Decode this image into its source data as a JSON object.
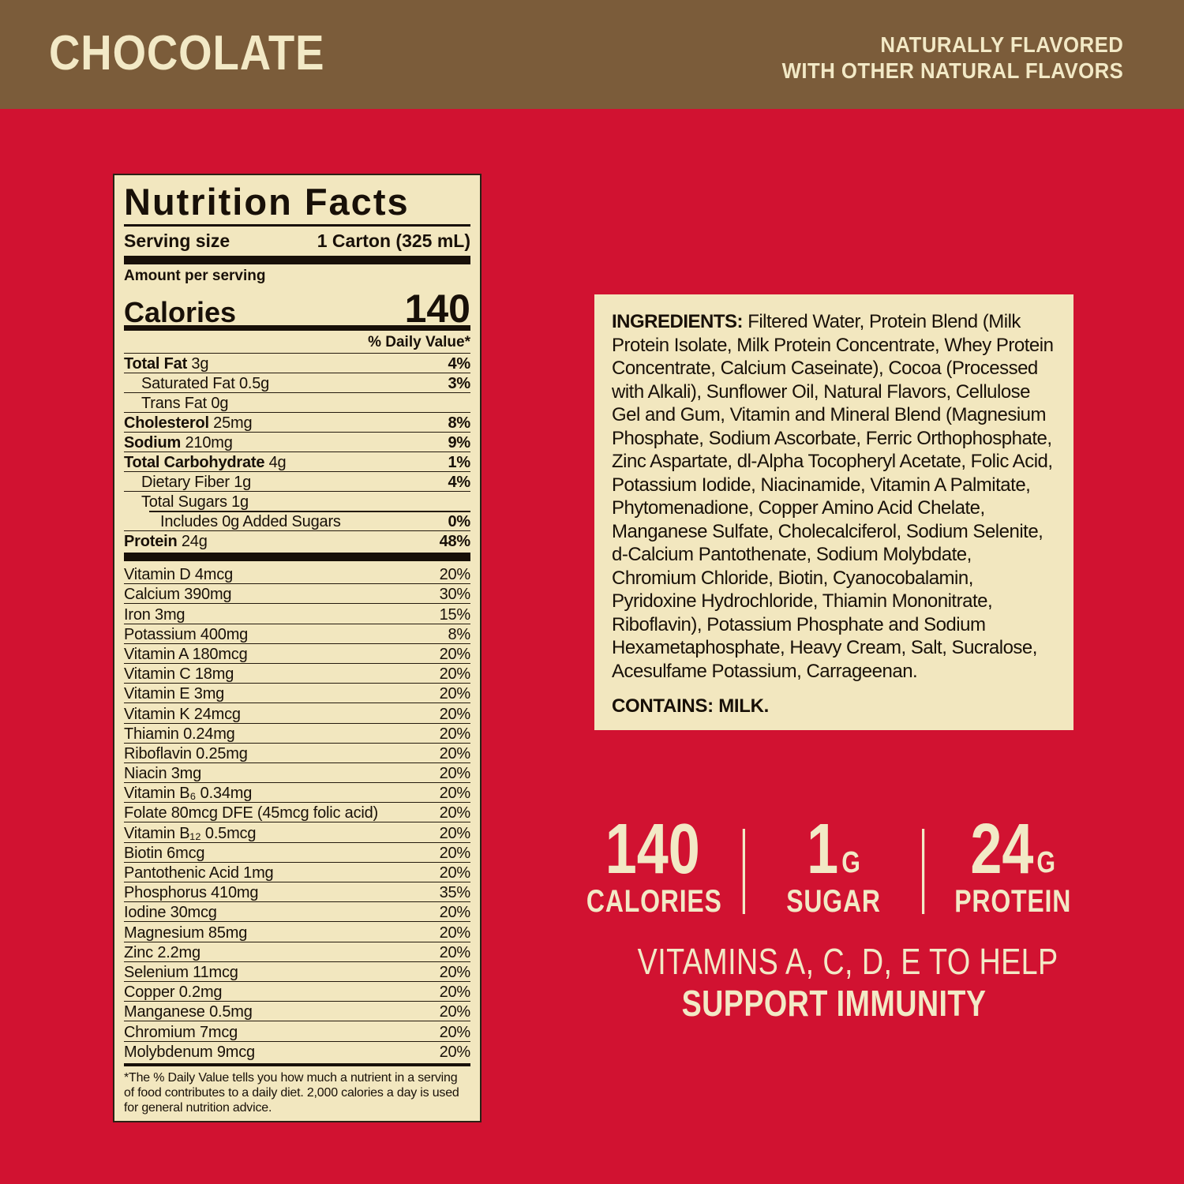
{
  "banner": {
    "flavor": "CHOCOLATE",
    "tagline_line1": "NATURALLY FLAVORED",
    "tagline_line2": "WITH OTHER NATURAL FLAVORS"
  },
  "nutrition_facts": {
    "title": "Nutrition Facts",
    "serving_size_label": "Serving size",
    "serving_size_value": "1 Carton (325 mL)",
    "amount_per_serving": "Amount per serving",
    "calories_label": "Calories",
    "calories_value": "140",
    "daily_value_header": "% Daily Value*",
    "main_rows": [
      {
        "bold": "Total Fat",
        "rest": "3g",
        "dv": "4%",
        "indent": 0
      },
      {
        "bold": "",
        "rest": "Saturated Fat 0.5g",
        "dv": "3%",
        "indent": 1
      },
      {
        "bold": "",
        "rest": "Trans Fat 0g",
        "dv": "",
        "indent": 1
      },
      {
        "bold": "Cholesterol",
        "rest": "25mg",
        "dv": "8%",
        "indent": 0
      },
      {
        "bold": "Sodium",
        "rest": "210mg",
        "dv": "9%",
        "indent": 0
      },
      {
        "bold": "Total Carbohydrate",
        "rest": "4g",
        "dv": "1%",
        "indent": 0
      },
      {
        "bold": "",
        "rest": "Dietary Fiber 1g",
        "dv": "4%",
        "indent": 1
      },
      {
        "bold": "",
        "rest": "Total Sugars 1g",
        "dv": "",
        "indent": 1
      },
      {
        "bold": "",
        "rest": "Includes 0g Added Sugars",
        "dv": "0%",
        "indent": 2,
        "sep_indent": true
      },
      {
        "bold": "Protein",
        "rest": "24g",
        "dv": "48%",
        "indent": 0
      }
    ],
    "micro_rows": [
      {
        "name": "Vitamin D 4mcg",
        "dv": "20%"
      },
      {
        "name": "Calcium 390mg",
        "dv": "30%"
      },
      {
        "name": "Iron 3mg",
        "dv": "15%"
      },
      {
        "name": "Potassium 400mg",
        "dv": "8%"
      },
      {
        "name": "Vitamin A 180mcg",
        "dv": "20%"
      },
      {
        "name": "Vitamin C 18mg",
        "dv": "20%"
      },
      {
        "name": "Vitamin E 3mg",
        "dv": "20%"
      },
      {
        "name": "Vitamin K 24mcg",
        "dv": "20%"
      },
      {
        "name": "Thiamin 0.24mg",
        "dv": "20%"
      },
      {
        "name": "Riboflavin 0.25mg",
        "dv": "20%"
      },
      {
        "name": "Niacin 3mg",
        "dv": "20%"
      },
      {
        "name": "Vitamin B₆ 0.34mg",
        "dv": "20%"
      },
      {
        "name": "Folate 80mcg DFE (45mcg folic acid)",
        "dv": "20%"
      },
      {
        "name": "Vitamin B₁₂ 0.5mcg",
        "dv": "20%"
      },
      {
        "name": "Biotin 6mcg",
        "dv": "20%"
      },
      {
        "name": "Pantothenic Acid 1mg",
        "dv": "20%"
      },
      {
        "name": "Phosphorus 410mg",
        "dv": "35%"
      },
      {
        "name": "Iodine 30mcg",
        "dv": "20%"
      },
      {
        "name": "Magnesium 85mg",
        "dv": "20%"
      },
      {
        "name": "Zinc 2.2mg",
        "dv": "20%"
      },
      {
        "name": "Selenium 11mcg",
        "dv": "20%"
      },
      {
        "name": "Copper 0.2mg",
        "dv": "20%"
      },
      {
        "name": "Manganese 0.5mg",
        "dv": "20%"
      },
      {
        "name": "Chromium 7mcg",
        "dv": "20%"
      },
      {
        "name": "Molybdenum 9mcg",
        "dv": "20%"
      }
    ],
    "footnote": "*The % Daily Value tells you how much a nutrient in a serving of food contributes to a daily diet. 2,000 calories a day is used for general nutrition advice."
  },
  "ingredients": {
    "label": "INGREDIENTS:",
    "text": "Filtered Water, Protein Blend (Milk Protein Isolate, Milk Protein Concentrate, Whey Protein Concentrate, Calcium Caseinate), Cocoa (Processed with Alkali), Sunflower Oil, Natural Flavors, Cellulose Gel and Gum, Vitamin and Mineral Blend (Magnesium Phosphate, Sodium Ascorbate, Ferric Orthophosphate, Zinc Aspartate, dl-Alpha Tocopheryl Acetate, Folic Acid, Potassium Iodide, Niacinamide, Vitamin A Palmitate, Phytomenadione, Copper Amino Acid Chelate, Manganese Sulfate, Cholecalciferol, Sodium Selenite, d-Calcium Pantothenate, Sodium Molybdate, Chromium Chloride, Biotin, Cyanocobalamin, Pyridoxine Hydrochloride, Thiamin Mononitrate, Riboflavin), Potassium Phosphate and Sodium Hexametaphosphate, Heavy Cream, Salt, Sucralose, Acesulfame Potassium, Carrageenan.",
    "contains": "CONTAINS: MILK."
  },
  "stats": [
    {
      "value": "140",
      "unit": "",
      "label": "CALORIES"
    },
    {
      "value": "1",
      "unit": "G",
      "label": "SUGAR"
    },
    {
      "value": "24",
      "unit": "G",
      "label": "PROTEIN"
    }
  ],
  "claim": {
    "line1": "VITAMINS A, C, D, E TO HELP",
    "line2": "SUPPORT IMMUNITY"
  },
  "colors": {
    "red": "#d11231",
    "brown": "#7b5c3a",
    "cream": "#f2e9c6",
    "panel_cream": "#f2e7bf"
  }
}
